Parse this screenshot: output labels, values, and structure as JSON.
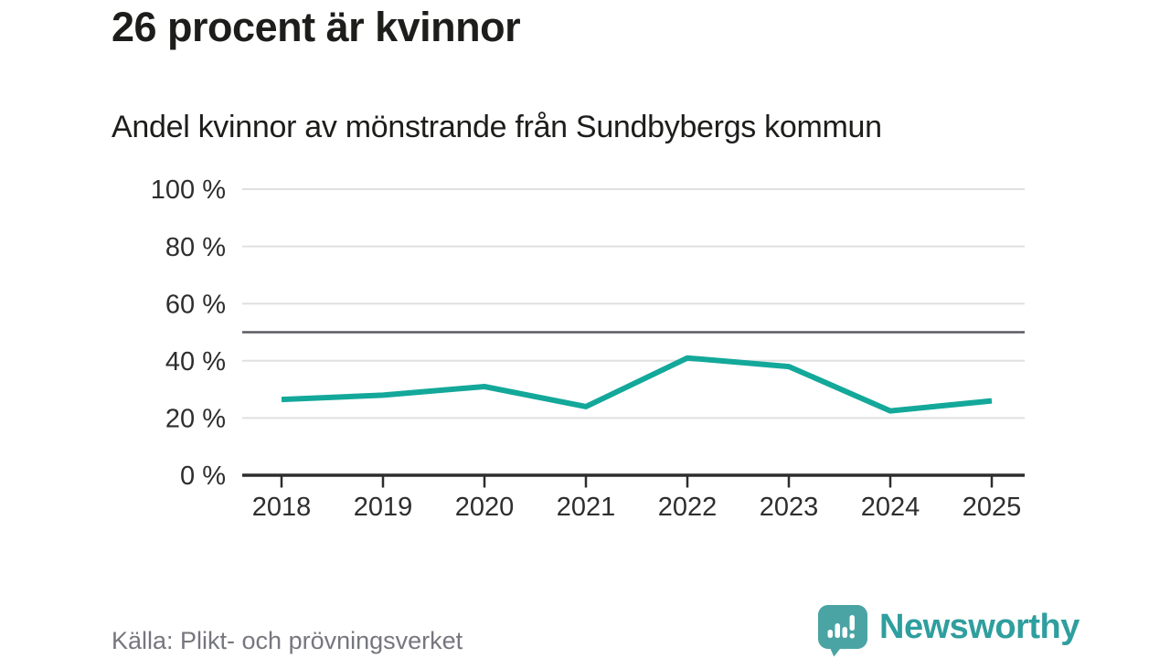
{
  "header": {
    "title": "26 procent är kvinnor",
    "subtitle": "Andel kvinnor av mönstrande från Sundbybergs kommun"
  },
  "chart_data": {
    "type": "line",
    "title": "26 procent är kvinnor",
    "subtitle": "Andel kvinnor av mönstrande från Sundbybergs kommun",
    "categories": [
      "2018",
      "2019",
      "2020",
      "2021",
      "2022",
      "2023",
      "2024",
      "2025"
    ],
    "series": [
      {
        "name": "Andel kvinnor av mönstrande",
        "values": [
          26.5,
          28,
          31,
          24,
          41,
          38,
          22.5,
          26
        ],
        "color": "#13a89a"
      }
    ],
    "ylim": [
      0,
      100
    ],
    "yticks": [
      {
        "value": 0,
        "label": "0 %"
      },
      {
        "value": 20,
        "label": "20 %"
      },
      {
        "value": 40,
        "label": "40 %"
      },
      {
        "value": 60,
        "label": "60 %"
      },
      {
        "value": 80,
        "label": "80 %"
      },
      {
        "value": 100,
        "label": "100 %"
      }
    ],
    "reference_line": 50,
    "grid": true,
    "legend": "none",
    "xlabel": "",
    "ylabel": ""
  },
  "colors": {
    "line": "#13a89a",
    "grid": "#e0e0e0",
    "reference": "#5a5a62",
    "axis": "#2d2d2d",
    "axis_text": "#2e2e2e",
    "title_text": "#1d1d1b",
    "source_text": "#76767e",
    "brand_teal": "#2f9e9e",
    "logo_teal": "#4ba4a4"
  },
  "footer": {
    "source": "Källa: Plikt- och prövningsverket",
    "brand": "Newsworthy"
  }
}
